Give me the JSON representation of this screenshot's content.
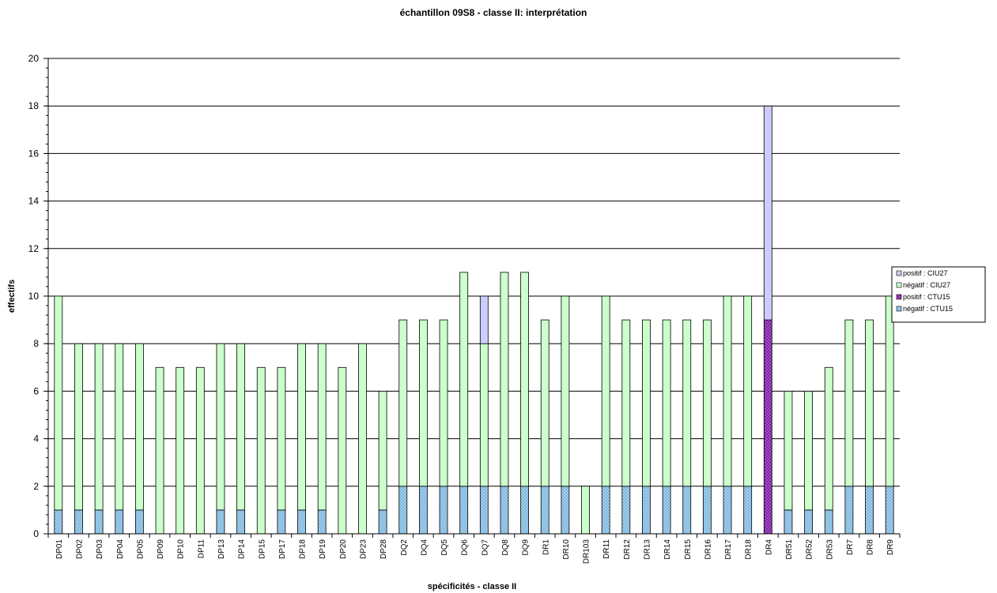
{
  "chart_data": {
    "type": "bar",
    "stacked": true,
    "title": "échantillon 09S8 - classe II: interprétation",
    "xlabel": "spécificités - classe II",
    "ylabel": "effectifs",
    "ylim": [
      0,
      20
    ],
    "yticks": [
      "0",
      "2",
      "4",
      "6",
      "8",
      "10",
      "12",
      "14",
      "16",
      "18",
      "20"
    ],
    "grid": true,
    "legend_position": "right",
    "categories": [
      "DP01",
      "DP02",
      "DP03",
      "DP04",
      "DP05",
      "DP09",
      "DP10",
      "DP11",
      "DP13",
      "DP14",
      "DP15",
      "DP17",
      "DP18",
      "DP19",
      "DP20",
      "DP23",
      "DP28",
      "DQ2",
      "DQ4",
      "DQ5",
      "DQ6",
      "DQ7",
      "DQ8",
      "DQ9",
      "DR1",
      "DR10",
      "DR103",
      "DR11",
      "DR12",
      "DR13",
      "DR14",
      "DR15",
      "DR16",
      "DR17",
      "DR18",
      "DR4",
      "DR51",
      "DR52",
      "DR53",
      "DR7",
      "DR8",
      "DR9"
    ],
    "series": [
      {
        "name": "négatif : CTU15",
        "color": "#a9d6f0",
        "pattern": "crosshatch",
        "values": [
          1,
          1,
          1,
          1,
          1,
          0,
          0,
          0,
          1,
          1,
          0,
          1,
          1,
          1,
          0,
          0,
          1,
          2,
          2,
          2,
          2,
          2,
          2,
          2,
          2,
          2,
          0,
          2,
          2,
          2,
          2,
          2,
          2,
          2,
          2,
          0,
          1,
          1,
          1,
          2,
          2,
          2
        ]
      },
      {
        "name": "positif : CTU15",
        "color": "#9b30c8",
        "pattern": "crosshatch",
        "values": [
          0,
          0,
          0,
          0,
          0,
          0,
          0,
          0,
          0,
          0,
          0,
          0,
          0,
          0,
          0,
          0,
          0,
          0,
          0,
          0,
          0,
          0,
          0,
          0,
          0,
          0,
          0,
          0,
          0,
          0,
          0,
          0,
          0,
          0,
          0,
          9,
          0,
          0,
          0,
          0,
          0,
          0
        ]
      },
      {
        "name": "négatif : CIU27",
        "color": "#ccffcc",
        "pattern": "solid",
        "values": [
          9,
          7,
          7,
          7,
          7,
          7,
          7,
          7,
          7,
          7,
          7,
          6,
          7,
          7,
          7,
          8,
          5,
          7,
          7,
          7,
          9,
          6,
          9,
          9,
          7,
          8,
          2,
          8,
          7,
          7,
          7,
          7,
          7,
          8,
          8,
          0,
          5,
          5,
          6,
          7,
          7,
          8
        ]
      },
      {
        "name": "positif : CIU27",
        "color": "#ccccff",
        "pattern": "solid",
        "values": [
          0,
          0,
          0,
          0,
          0,
          0,
          0,
          0,
          0,
          0,
          0,
          0,
          0,
          0,
          0,
          0,
          0,
          0,
          0,
          0,
          0,
          2,
          0,
          0,
          0,
          0,
          0,
          0,
          0,
          0,
          0,
          0,
          0,
          0,
          0,
          9,
          0,
          0,
          0,
          0,
          0,
          0
        ]
      }
    ],
    "legend_order": [
      "positif : CIU27",
      "négatif : CIU27",
      "positif : CTU15",
      "négatif : CTU15"
    ]
  }
}
